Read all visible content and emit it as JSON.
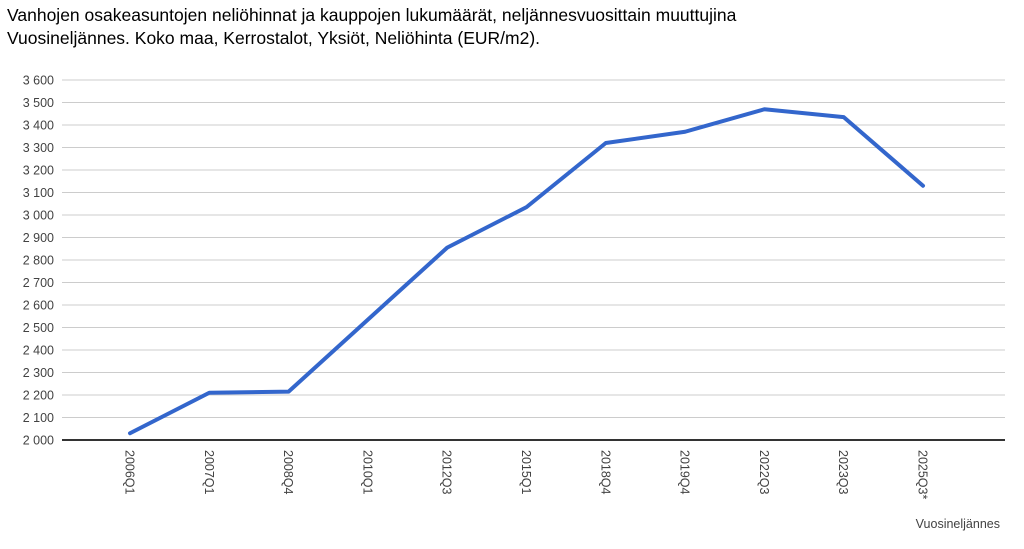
{
  "title": {
    "line1": "Vanhojen osakeasuntojen neliöhinnat ja kauppojen lukumäärät, neljännesvuosittain muuttujina",
    "line2": "Vuosineljännes. Koko maa, Kerrostalot, Yksiöt, Neliöhinta (EUR/m2)."
  },
  "chart_data": {
    "type": "line",
    "title": "Vanhojen osakeasuntojen neliöhinnat ja kauppojen lukumäärät, neljännesvuosittain muuttujina Vuosineljännes. Koko maa, Kerrostalot, Yksiöt, Neliöhinta (EUR/m2).",
    "categories": [
      "2006Q1",
      "2007Q1",
      "2008Q4",
      "2010Q1",
      "2012Q3",
      "2015Q1",
      "2018Q4",
      "2019Q4",
      "2022Q3",
      "2023Q3",
      "2025Q3*"
    ],
    "values": [
      2030,
      2210,
      2215,
      2535,
      2855,
      3035,
      3320,
      3370,
      3470,
      3435,
      3130
    ],
    "series_name": "Neliöhinta (EUR/m2)",
    "xlabel": "Vuosineljännes",
    "ylabel": "",
    "ylim": [
      2000,
      3600
    ],
    "ytick_step": 100,
    "y_tick_labels": [
      "2 000",
      "2 100",
      "2 200",
      "2 300",
      "2 400",
      "2 500",
      "2 600",
      "2 700",
      "2 800",
      "2 900",
      "3 000",
      "3 100",
      "3 200",
      "3 300",
      "3 400",
      "3 500",
      "3 600"
    ],
    "grid": true,
    "legend_position": "none",
    "line_color": "#3366cc",
    "gridline_color": "#cccccc",
    "axis_line_color": "#333333",
    "tick_label_color": "#424242"
  }
}
